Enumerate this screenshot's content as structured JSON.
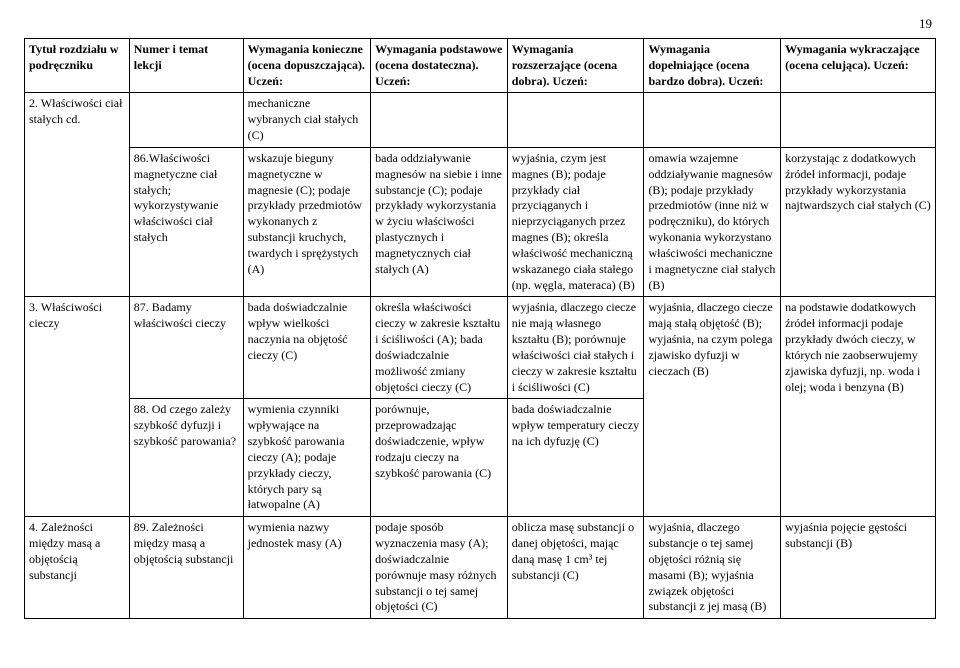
{
  "page_number": "19",
  "headers": [
    "Tytuł rozdziału w podręczniku",
    "Numer i temat lekcji",
    "Wymagania konieczne (ocena dopuszczająca). Uczeń:",
    "Wymagania podstawowe (ocena dostateczna). Uczeń:",
    "Wymagania rozszerzające (ocena dobra). Uczeń:",
    "Wymagania dopełniające (ocena bardzo dobra). Uczeń:",
    "Wymagania wykraczające (ocena celująca). Uczeń:"
  ],
  "rows": [
    {
      "c1": "2. Właściwości ciał stałych cd.",
      "c2": "",
      "c3": "mechaniczne wybranych ciał stałych (C)",
      "c4": "",
      "c5": "",
      "c6": "",
      "c7": ""
    },
    {
      "c1": "",
      "c2": "86.Właściwości magnetyczne ciał stałych; wykorzystywanie właściwości ciał stałych",
      "c3": "wskazuje bieguny magnetyczne w magnesie (C); podaje przykłady przedmiotów wykonanych z substancji kruchych, twardych i sprężystych (A)",
      "c4": "bada oddziaływanie magnesów na siebie i inne substancje (C); podaje przykłady wykorzystania w życiu właściwości plastycznych i magnetycznych ciał stałych (A)",
      "c5": "wyjaśnia, czym jest magnes (B); podaje przykłady ciał przyciąganych i nieprzyciąganych przez magnes (B); określa właściwość mechaniczną wskazanego ciała stałego (np. węgla, materaca) (B)",
      "c6": "omawia wzajemne oddziaływanie magnesów (B); podaje przykłady przedmiotów (inne niż w podręczniku), do których wykonania wykorzystano właściwości mechaniczne i magnetyczne ciał stałych (B)",
      "c7": "korzystając z dodatkowych źródeł informacji, podaje przykłady wykorzystania najtwardszych ciał stałych (C)"
    },
    {
      "c1": "3. Właściwości cieczy",
      "c2": "87. Badamy właściwości cieczy",
      "c3": "bada doświadczalnie wpływ wielkości naczynia na objętość cieczy (C)",
      "c4": "określa właściwości cieczy w zakresie kształtu i ściśliwości (A); bada doświadczalnie możliwość zmiany objętości cieczy (C)",
      "c5": "wyjaśnia, dlaczego ciecze nie mają własnego kształtu (B); porównuje właściwości ciał stałych i cieczy w zakresie kształtu i ściśliwości (C)",
      "c6": "wyjaśnia, dlaczego ciecze mają stałą objętość (B); wyjaśnia, na czym polega zjawisko dyfuzji w cieczach (B)",
      "c7": "na podstawie dodatkowych źródeł informacji podaje przykłady dwóch cieczy, w których nie zaobserwujemy zjawiska dyfuzji, np. woda i olej; woda i benzyna (B)"
    },
    {
      "c1": "",
      "c2": "88. Od czego zależy szybkość dyfuzji i szybkość parowania?",
      "c3": "wymienia czynniki wpływające na szybkość parowania cieczy (A); podaje przykłady cieczy, których pary są łatwopalne (A)",
      "c4": "porównuje, przeprowadzając doświadczenie, wpływ rodzaju cieczy na szybkość parowania (C)",
      "c5": "bada doświadczalnie wpływ temperatury cieczy na ich dyfuzję (C)",
      "c6": "",
      "c7": ""
    },
    {
      "c1": "4. Zależności między masą a objętością substancji",
      "c2": "89. Zależności między masą a objętością substancji",
      "c3": "wymienia nazwy jednostek masy (A)",
      "c4": "podaje sposób wyznaczenia masy (A); doświadczalnie porównuje masy różnych substancji o tej samej objętości (C)",
      "c5": "oblicza masę substancji o danej objętości, mając daną masę 1 cm³ tej substancji (C)",
      "c6": "wyjaśnia, dlaczego substancje o tej samej objętości różnią się masami (B); wyjaśnia związek objętości substancji z jej masą (B)",
      "c7": "wyjaśnia pojęcie gęstości substancji (B)"
    }
  ]
}
